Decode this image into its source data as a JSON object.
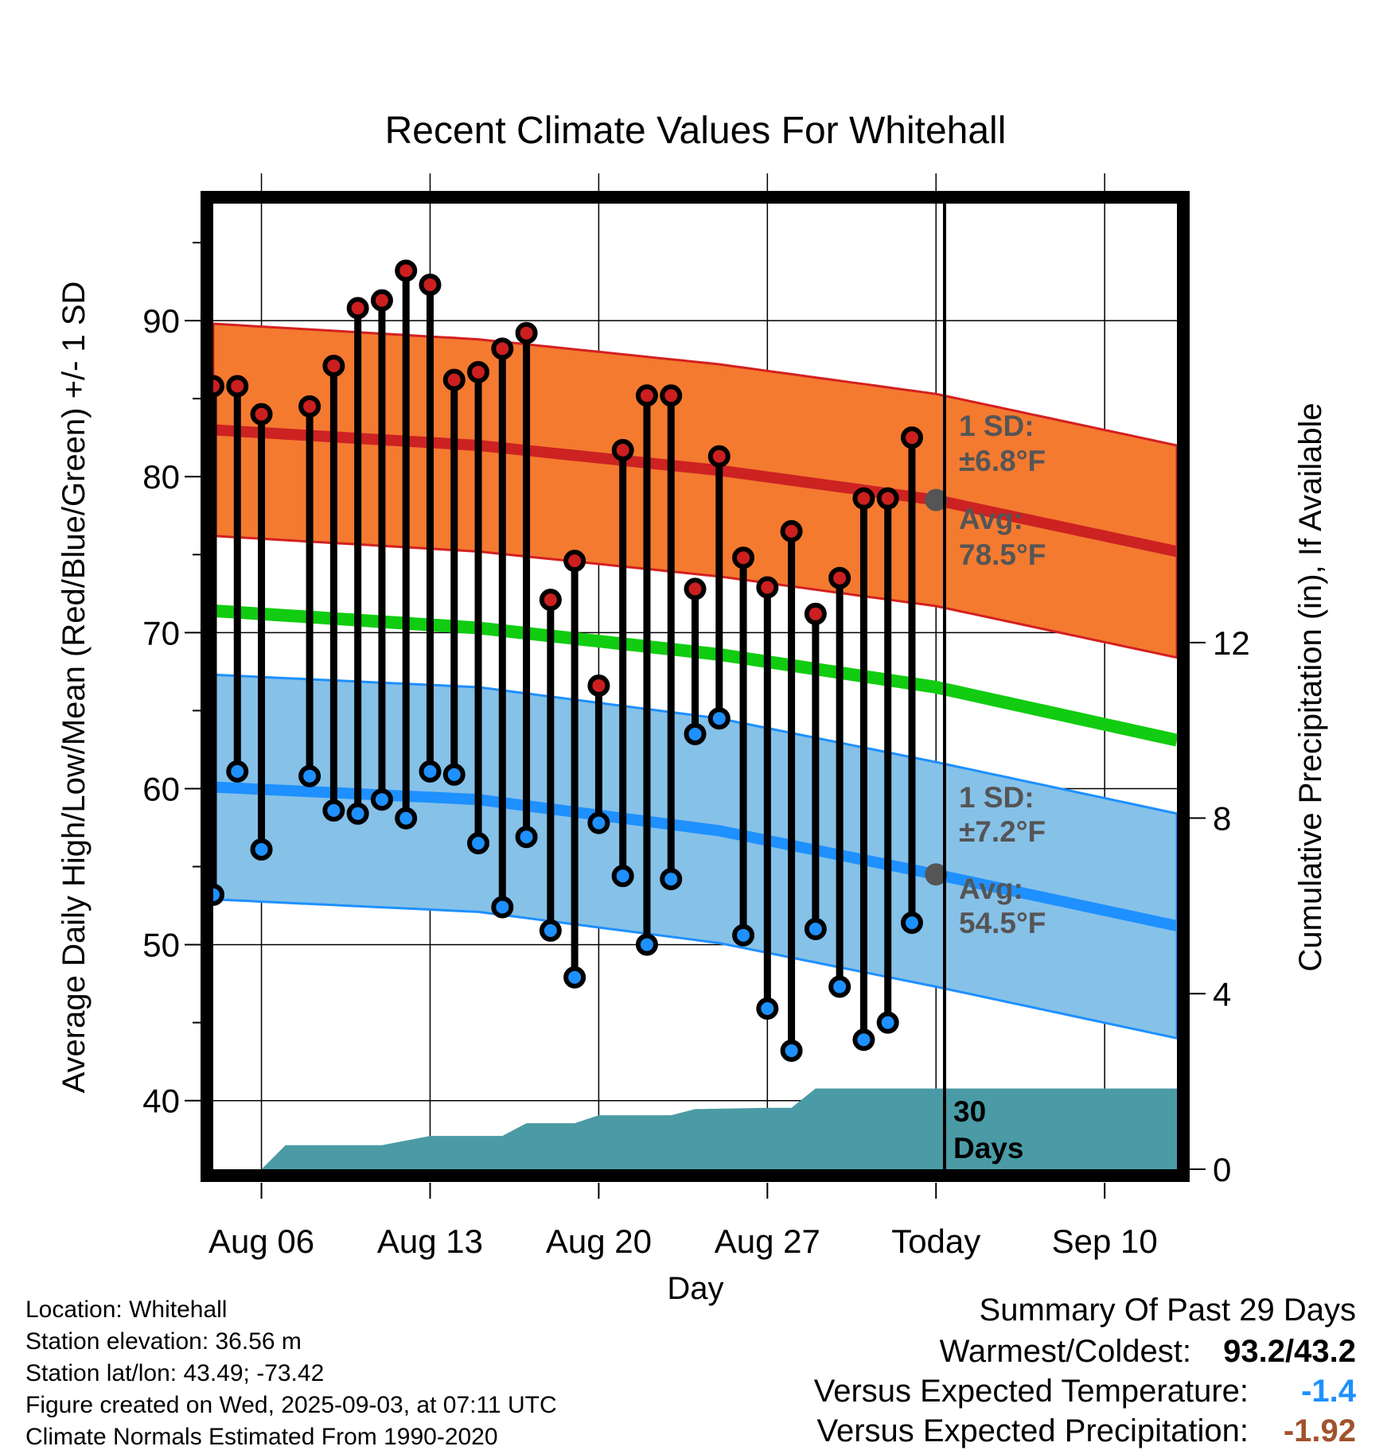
{
  "chart_data": {
    "type": "line",
    "title": "Recent Climate Values For Whitehall",
    "xlabel": "Day",
    "ylabel": "Average Daily High/Low/Mean (Red/Blue/Green) +/- 1 SD",
    "y2label": "Cumulative Precipitation (in), If Available",
    "x_ticks": [
      "Aug 06",
      "Aug 13",
      "Aug 20",
      "Aug 27",
      "Today",
      "Sep 10"
    ],
    "x_range": [
      "Aug 04",
      "Sep 13"
    ],
    "ylim": [
      35.6,
      97.5
    ],
    "y_ticks": [
      40,
      50,
      60,
      70,
      80,
      90
    ],
    "y2lim": [
      0,
      22
    ],
    "y2_ticks": [
      0,
      4,
      8,
      12
    ],
    "grid": true,
    "normals": {
      "high_avg": [
        83.0,
        82.0,
        80.4,
        78.5,
        75.2
      ],
      "high_sd": 6.8,
      "mean_avg": [
        71.4,
        70.3,
        68.6,
        66.5,
        63.1
      ],
      "low_avg": [
        60.1,
        59.3,
        57.3,
        54.5,
        51.2
      ],
      "low_sd": 7.2,
      "normal_days": [
        "Aug 04",
        "Aug 15",
        "Aug 25",
        "Sep 03",
        "Sep 13"
      ]
    },
    "series": [
      {
        "name": "High",
        "color": "#cc1f1f",
        "dates": [
          "Aug 04",
          "Aug 05",
          "Aug 06",
          "Aug 08",
          "Aug 09",
          "Aug 10",
          "Aug 11",
          "Aug 12",
          "Aug 13",
          "Aug 14",
          "Aug 15",
          "Aug 16",
          "Aug 17",
          "Aug 18",
          "Aug 19",
          "Aug 20",
          "Aug 21",
          "Aug 22",
          "Aug 23",
          "Aug 24",
          "Aug 25",
          "Aug 26",
          "Aug 27",
          "Aug 28",
          "Aug 29",
          "Aug 30",
          "Aug 31",
          "Sep 01",
          "Sep 02"
        ],
        "values": [
          85.8,
          85.8,
          84.0,
          84.5,
          87.1,
          90.8,
          91.3,
          93.2,
          92.3,
          86.2,
          86.7,
          88.2,
          89.2,
          72.1,
          74.6,
          66.6,
          81.7,
          85.2,
          85.2,
          72.8,
          81.3,
          74.8,
          72.9,
          76.5,
          71.2,
          73.5,
          78.6,
          78.6,
          82.5
        ]
      },
      {
        "name": "Low",
        "color": "#1e90ff",
        "dates": [
          "Aug 04",
          "Aug 05",
          "Aug 06",
          "Aug 08",
          "Aug 09",
          "Aug 10",
          "Aug 11",
          "Aug 12",
          "Aug 13",
          "Aug 14",
          "Aug 15",
          "Aug 16",
          "Aug 17",
          "Aug 18",
          "Aug 19",
          "Aug 20",
          "Aug 21",
          "Aug 22",
          "Aug 23",
          "Aug 24",
          "Aug 25",
          "Aug 26",
          "Aug 27",
          "Aug 28",
          "Aug 29",
          "Aug 30",
          "Aug 31",
          "Sep 01",
          "Sep 02"
        ],
        "values": [
          53.2,
          61.1,
          56.1,
          60.8,
          58.6,
          58.4,
          59.3,
          58.1,
          61.1,
          60.9,
          56.5,
          52.4,
          56.9,
          50.9,
          47.9,
          57.8,
          54.4,
          50.0,
          54.2,
          63.5,
          64.5,
          50.6,
          45.9,
          43.2,
          51.0,
          47.3,
          43.9,
          45.0,
          51.4
        ]
      },
      {
        "name": "Cumulative Precipitation",
        "color": "#4a9ba5",
        "dates": [
          "Aug 04",
          "Aug 05",
          "Aug 06",
          "Aug 07",
          "Aug 11",
          "Aug 13",
          "Aug 16",
          "Aug 17",
          "Aug 19",
          "Aug 20",
          "Aug 23",
          "Aug 24",
          "Aug 27",
          "Aug 28",
          "Aug 29",
          "Sep 13"
        ],
        "values": [
          0.0,
          0.0,
          0.0,
          0.55,
          0.55,
          0.76,
          0.76,
          1.05,
          1.05,
          1.23,
          1.23,
          1.37,
          1.4,
          1.4,
          1.84,
          1.84
        ]
      }
    ],
    "annotations": {
      "high_sd_label": "1 SD:",
      "high_sd_value": "±6.8°F",
      "high_avg_label": "Avg:",
      "high_avg_value": "78.5°F",
      "low_sd_label": "1 SD:",
      "low_sd_value": "±7.2°F",
      "low_avg_label": "Avg:",
      "low_avg_value": "54.5°F",
      "precip_days_line1": "30",
      "precip_days_line2": "Days"
    }
  },
  "footer": {
    "location": "Location: Whitehall",
    "elevation": "Station elevation: 36.56 m",
    "latlon": "Station lat/lon: 43.49; -73.42",
    "created": "Figure created on Wed, 2025-09-03, at 07:11 UTC",
    "normals": "Climate Normals Estimated From 1990-2020"
  },
  "summary": {
    "title": "Summary Of Past 29 Days",
    "warm_cold_label": "Warmest/Coldest:",
    "warm_cold_value": "93.2/43.2",
    "temp_label": "Versus Expected Temperature:",
    "temp_value": "-1.4",
    "temp_color": "#1e90ff",
    "precip_label": "Versus Expected Precipitation:",
    "precip_value": "-1.92",
    "precip_color": "#a0522d"
  }
}
